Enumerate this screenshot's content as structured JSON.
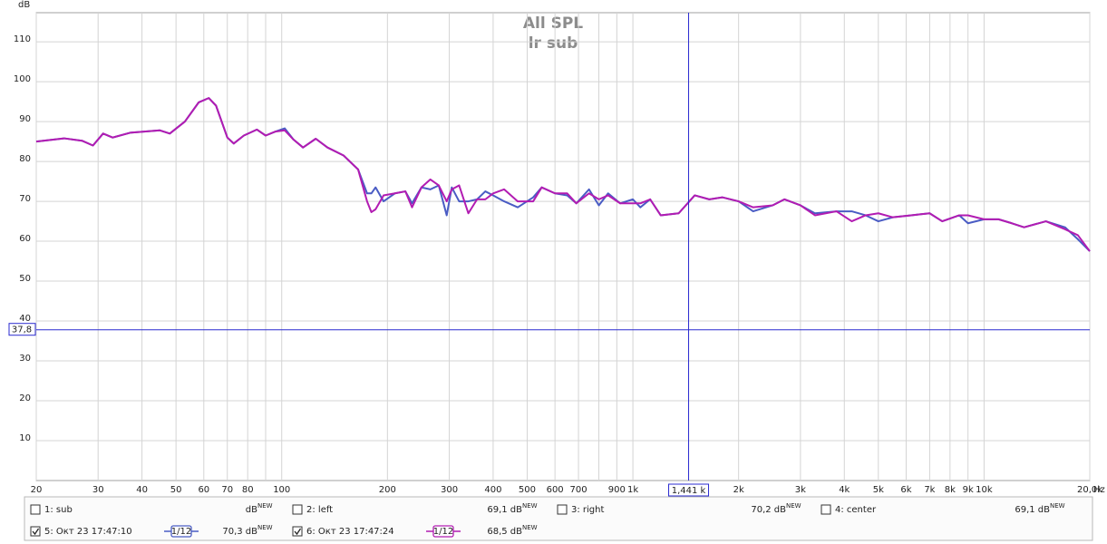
{
  "chart_data": {
    "type": "line",
    "title": "All SPL",
    "subtitle": "lr sub",
    "y_unit": "dB",
    "x_unit": "Hz",
    "xscale": "log",
    "xlim": [
      20,
      20000
    ],
    "ylim": [
      0,
      117.3
    ],
    "yticks": [
      10,
      20,
      30,
      40,
      50,
      60,
      70,
      80,
      90,
      100,
      110
    ],
    "xticks": [
      20,
      30,
      40,
      50,
      60,
      70,
      80,
      100,
      200,
      300,
      400,
      500,
      600,
      700,
      900,
      {
        "value": 1000,
        "label": "1k"
      },
      {
        "value": 2000,
        "label": "2k"
      },
      {
        "value": 3000,
        "label": "3k"
      },
      {
        "value": 4000,
        "label": "4k"
      },
      {
        "value": 5000,
        "label": "5k"
      },
      {
        "value": 6000,
        "label": "6k"
      },
      {
        "value": 7000,
        "label": "7k"
      },
      {
        "value": 8000,
        "label": "8k"
      },
      {
        "value": 9000,
        "label": "9k"
      },
      {
        "value": 10000,
        "label": "10k"
      },
      {
        "value": 20000,
        "label": "20,0k"
      }
    ],
    "xgrid_minor": [
      90,
      800
    ],
    "grid": true,
    "cursor_x": {
      "value": 1441,
      "label": "1,441 k"
    },
    "cursor_y": {
      "value": 37.8,
      "label": "37,8"
    },
    "x": [
      20,
      24,
      27,
      29,
      31,
      33,
      37,
      45,
      48,
      53,
      58,
      62,
      65,
      70,
      73,
      78,
      85,
      90,
      96,
      102,
      108,
      115,
      125,
      135,
      150,
      165,
      175,
      180,
      185,
      195,
      210,
      225,
      235,
      250,
      265,
      280,
      295,
      305,
      320,
      340,
      360,
      380,
      400,
      430,
      470,
      520,
      550,
      600,
      650,
      690,
      750,
      800,
      850,
      920,
      1000,
      1050,
      1120,
      1200,
      1350,
      1500,
      1650,
      1800,
      2000,
      2200,
      2500,
      2700,
      3000,
      3300,
      3800,
      4200,
      4600,
      5000,
      5500,
      6200,
      7000,
      7600,
      8500,
      9000,
      10000,
      11000,
      12000,
      13000,
      15000,
      17000,
      18500,
      20000
    ],
    "level_badge": "NEW",
    "series": [
      {
        "name": "5: Окт 23 17:47:10",
        "color": "#4a5cc4",
        "checked": true,
        "smoothing": "1/12",
        "level": "70,3 dB",
        "values": [
          85,
          85.8,
          85.2,
          84,
          87,
          86,
          87.2,
          87.8,
          87,
          90,
          94.8,
          95.9,
          94,
          86,
          84.5,
          86.5,
          88,
          86.5,
          87.5,
          88.3,
          85.5,
          83.5,
          85.7,
          83.5,
          81.5,
          78,
          72,
          72,
          73.5,
          70,
          72,
          72.5,
          69.5,
          73.5,
          73,
          74,
          66.5,
          73.5,
          70,
          70,
          70.5,
          72.5,
          71.5,
          70,
          68.5,
          71,
          73.5,
          72,
          71.5,
          69.5,
          73,
          69,
          72,
          69.5,
          70.5,
          68.5,
          70.5,
          66.5,
          67,
          71.5,
          70.5,
          71,
          70,
          67.5,
          69,
          70.5,
          69,
          67,
          67.5,
          67.5,
          66.5,
          65,
          66,
          66.5,
          67,
          65,
          66.5,
          64.5,
          65.5,
          65.5,
          64.5,
          63.5,
          65,
          63.5,
          60.5,
          57.5
        ]
      },
      {
        "name": "6: Окт 23 17:47:24",
        "color": "#b21cb2",
        "checked": true,
        "smoothing": "1/12",
        "level": "68,5 dB",
        "values": [
          85,
          85.8,
          85.2,
          84,
          87,
          86,
          87.2,
          87.8,
          87,
          90,
          94.8,
          95.9,
          94,
          86,
          84.5,
          86.5,
          88,
          86.5,
          87.5,
          87.8,
          85.5,
          83.5,
          85.7,
          83.5,
          81.5,
          78,
          70,
          67.3,
          68,
          71.5,
          72,
          72.5,
          68.5,
          73.5,
          75.5,
          74,
          70,
          73,
          74,
          67,
          70.5,
          70.5,
          72,
          73,
          70,
          70,
          73.5,
          72,
          72,
          69.5,
          72,
          70.5,
          71.5,
          69.5,
          69.5,
          69.5,
          70.5,
          66.5,
          67,
          71.5,
          70.5,
          71,
          70,
          68.5,
          69,
          70.5,
          69,
          66.5,
          67.5,
          65,
          66.5,
          67,
          66,
          66.5,
          67,
          65,
          66.5,
          66.5,
          65.5,
          65.5,
          64.5,
          63.5,
          65,
          63,
          61.5,
          57.5
        ]
      }
    ],
    "hidden_measurements": [
      {
        "name": "1: sub",
        "color": "#1f9a1f",
        "checked": false,
        "level": "dB"
      },
      {
        "name": "2: left",
        "color": "#c0143c",
        "checked": false,
        "level": "69,1 dB"
      },
      {
        "name": "3: right",
        "color": "#1f9a1f",
        "checked": false,
        "level": "70,2 dB"
      },
      {
        "name": "4: center",
        "color": "#1a2c9c",
        "checked": false,
        "level": "69,1 dB"
      }
    ]
  }
}
